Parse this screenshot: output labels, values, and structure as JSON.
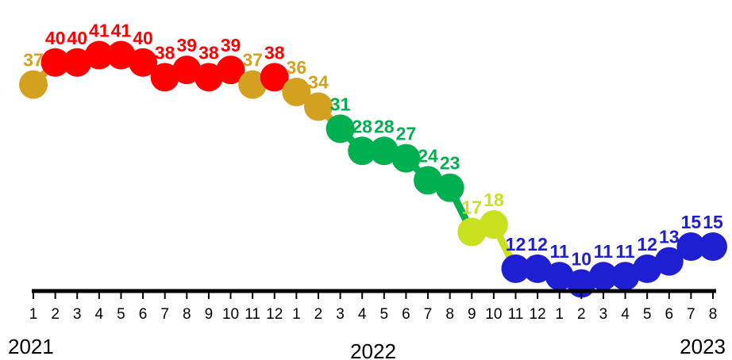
{
  "chart_data": {
    "type": "line",
    "title": "",
    "xlabel": "",
    "ylabel": "",
    "ylim": [
      8,
      43
    ],
    "grid": false,
    "legend": "none",
    "x": [
      "1",
      "2",
      "3",
      "4",
      "5",
      "6",
      "7",
      "8",
      "9",
      "10",
      "11",
      "12",
      "1",
      "2",
      "3",
      "4",
      "5",
      "6",
      "7",
      "8",
      "9",
      "10",
      "11",
      "12",
      "1",
      "2",
      "3",
      "4",
      "5",
      "6",
      "7",
      "8"
    ],
    "year_labels": [
      {
        "label": "2021",
        "index": 0
      },
      {
        "label": "2022",
        "index": 15.5
      },
      {
        "label": "2023",
        "index": 31
      }
    ],
    "series": [
      {
        "values": [
          37,
          40,
          40,
          41,
          41,
          40,
          38,
          39,
          38,
          39,
          37,
          38,
          36,
          34,
          31,
          28,
          28,
          27,
          24,
          23,
          17,
          18,
          12,
          12,
          11,
          10,
          11,
          11,
          12,
          13,
          15,
          15
        ],
        "point_colors": [
          "#D4A020",
          "#FF0000",
          "#FF0000",
          "#FF0000",
          "#FF0000",
          "#FF0000",
          "#FF0000",
          "#FF0000",
          "#FF0000",
          "#FF0000",
          "#D4A020",
          "#FF0000",
          "#D4A020",
          "#D4A020",
          "#00B050",
          "#00B050",
          "#00B050",
          "#00B050",
          "#00B050",
          "#00B050",
          "#C8E01E",
          "#C8E01E",
          "#1E1ED2",
          "#1E1ED2",
          "#1E1ED2",
          "#1E1ED2",
          "#1E1ED2",
          "#1E1ED2",
          "#1E1ED2",
          "#1E1ED2",
          "#1E1ED2",
          "#1E1ED2"
        ]
      }
    ]
  }
}
